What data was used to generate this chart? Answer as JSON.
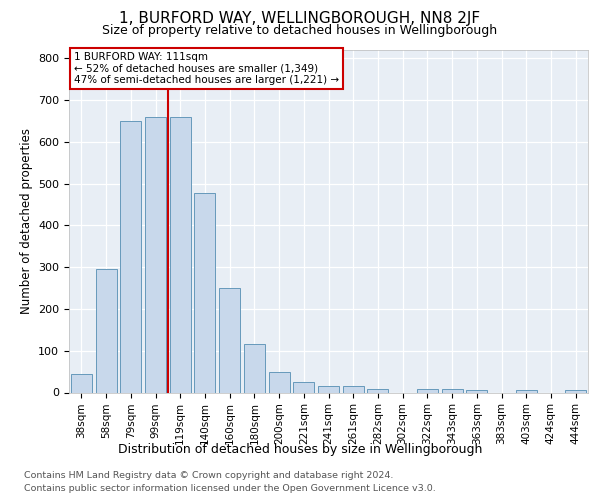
{
  "title": "1, BURFORD WAY, WELLINGBOROUGH, NN8 2JF",
  "subtitle": "Size of property relative to detached houses in Wellingborough",
  "xlabel": "Distribution of detached houses by size in Wellingborough",
  "ylabel": "Number of detached properties",
  "categories": [
    "38sqm",
    "58sqm",
    "79sqm",
    "99sqm",
    "119sqm",
    "140sqm",
    "160sqm",
    "180sqm",
    "200sqm",
    "221sqm",
    "241sqm",
    "261sqm",
    "282sqm",
    "302sqm",
    "322sqm",
    "343sqm",
    "363sqm",
    "383sqm",
    "403sqm",
    "424sqm",
    "444sqm"
  ],
  "values": [
    45,
    295,
    650,
    660,
    660,
    478,
    250,
    115,
    50,
    25,
    15,
    15,
    8,
    0,
    8,
    8,
    5,
    0,
    5,
    0,
    5
  ],
  "bar_color": "#c8d8eb",
  "bar_edge_color": "#6699bb",
  "marker_line_color": "#cc0000",
  "annotation_label": "1 BURFORD WAY: 111sqm",
  "annotation_line1": "← 52% of detached houses are smaller (1,349)",
  "annotation_line2": "47% of semi-detached houses are larger (1,221) →",
  "annotation_edge_color": "#cc0000",
  "ylim": [
    0,
    820
  ],
  "yticks": [
    0,
    100,
    200,
    300,
    400,
    500,
    600,
    700,
    800
  ],
  "bg_color": "#e8eef5",
  "footer_line1": "Contains HM Land Registry data © Crown copyright and database right 2024.",
  "footer_line2": "Contains public sector information licensed under the Open Government Licence v3.0."
}
